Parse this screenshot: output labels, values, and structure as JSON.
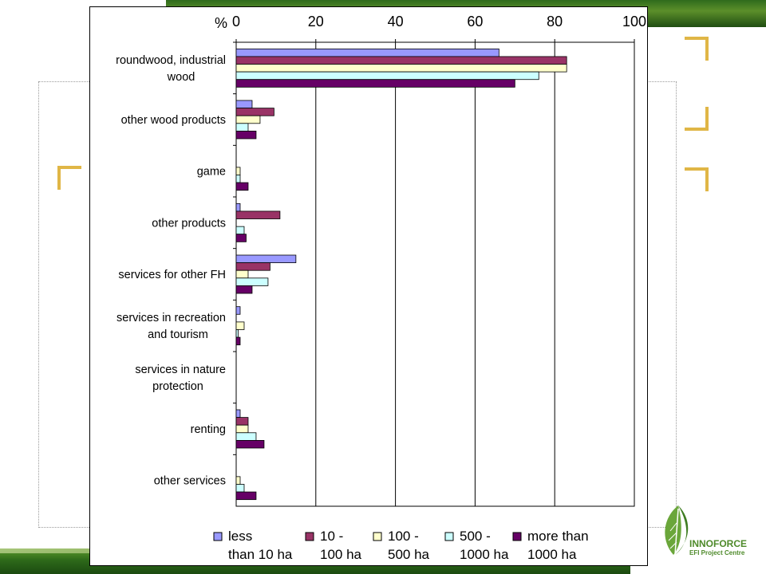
{
  "brand": {
    "name": "INNOFORCE",
    "subtitle": "EFI Project Centre"
  },
  "colors": {
    "band_green": "#2f6b1c",
    "corner_gold": "#e0b646"
  },
  "chart_data": {
    "type": "bar",
    "orientation": "horizontal",
    "x_unit_label": "%",
    "xlim": [
      0,
      100
    ],
    "x_ticks": [
      "0",
      "20",
      "40",
      "60",
      "80",
      "100"
    ],
    "grid": true,
    "legend_position": "bottom",
    "categories": [
      [
        "roundwood, industrial",
        "wood"
      ],
      [
        "other wood products"
      ],
      [
        "game"
      ],
      [
        "other products"
      ],
      [
        "services for other FH"
      ],
      [
        "services in recreation",
        "and tourism"
      ],
      [
        "services in nature",
        "protection"
      ],
      [
        "renting"
      ],
      [
        "other services"
      ]
    ],
    "series": [
      {
        "name": [
          "less",
          "than 10 ha"
        ],
        "color": "#9999ff",
        "values": [
          66,
          4,
          0,
          1,
          15,
          1,
          0,
          1,
          0
        ]
      },
      {
        "name": [
          "10 -",
          "100 ha"
        ],
        "color": "#993366",
        "values": [
          83,
          9.5,
          0,
          11,
          8.5,
          0,
          0,
          3,
          0
        ]
      },
      {
        "name": [
          "100 -",
          "500 ha"
        ],
        "color": "#ffffcc",
        "values": [
          83,
          6,
          1,
          0,
          3,
          2,
          0,
          3,
          1
        ]
      },
      {
        "name": [
          "500 -",
          "1000 ha"
        ],
        "color": "#ccffff",
        "values": [
          76,
          3,
          1,
          2,
          8,
          0.5,
          0,
          5,
          2
        ]
      },
      {
        "name": [
          "more than",
          "1000 ha"
        ],
        "color": "#660066",
        "values": [
          70,
          5,
          3,
          2.5,
          4,
          1,
          0,
          7,
          5
        ]
      }
    ]
  }
}
